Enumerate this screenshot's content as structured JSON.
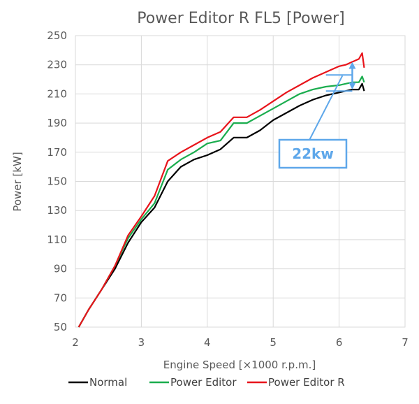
{
  "chart_data": {
    "type": "line",
    "title": "Power Editor R  FL5 [Power]",
    "xlabel": "Engine Speed [×1000 r.p.m.]",
    "ylabel": "Power [kW]",
    "xlim": [
      2,
      7
    ],
    "ylim": [
      50,
      250
    ],
    "xticks": [
      2,
      3,
      4,
      5,
      6,
      7
    ],
    "yticks": [
      50,
      70,
      90,
      110,
      130,
      150,
      170,
      190,
      210,
      230,
      250
    ],
    "grid": true,
    "legend": "bottom",
    "annotation": "22kw",
    "annotation_color": "#5ea7ea",
    "series": [
      {
        "name": "Normal",
        "color": "#000000",
        "x": [
          2.05,
          2.2,
          2.4,
          2.6,
          2.8,
          3.0,
          3.2,
          3.4,
          3.6,
          3.8,
          4.0,
          4.2,
          4.4,
          4.6,
          4.8,
          5.0,
          5.2,
          5.4,
          5.6,
          5.8,
          6.0,
          6.1,
          6.2,
          6.3,
          6.35,
          6.38
        ],
        "y": [
          50,
          62,
          76,
          90,
          108,
          122,
          132,
          150,
          160,
          165,
          168,
          172,
          180,
          180,
          185,
          192,
          197,
          202,
          206,
          209,
          211,
          212,
          213,
          213,
          217,
          212
        ]
      },
      {
        "name": "Power Editor",
        "color": "#1aad4e",
        "x": [
          2.05,
          2.2,
          2.4,
          2.6,
          2.8,
          3.0,
          3.2,
          3.4,
          3.6,
          3.8,
          4.0,
          4.2,
          4.4,
          4.6,
          4.8,
          5.0,
          5.2,
          5.4,
          5.6,
          5.8,
          6.0,
          6.1,
          6.2,
          6.3,
          6.35,
          6.38
        ],
        "y": [
          50,
          62,
          76,
          92,
          111,
          124,
          135,
          158,
          165,
          170,
          176,
          178,
          190,
          190,
          195,
          200,
          205,
          210,
          213,
          215,
          216,
          217,
          218,
          218,
          222,
          218
        ]
      },
      {
        "name": "Power Editor R",
        "color": "#e8141b",
        "x": [
          2.05,
          2.2,
          2.4,
          2.6,
          2.8,
          3.0,
          3.2,
          3.4,
          3.6,
          3.8,
          4.0,
          4.2,
          4.4,
          4.6,
          4.8,
          5.0,
          5.2,
          5.4,
          5.6,
          5.8,
          6.0,
          6.1,
          6.2,
          6.3,
          6.35,
          6.38
        ],
        "y": [
          50,
          62,
          76,
          92,
          113,
          126,
          140,
          164,
          170,
          175,
          180,
          184,
          194,
          194,
          199,
          205,
          211,
          216,
          221,
          225,
          229,
          230,
          232,
          234,
          238,
          228
        ]
      }
    ]
  }
}
